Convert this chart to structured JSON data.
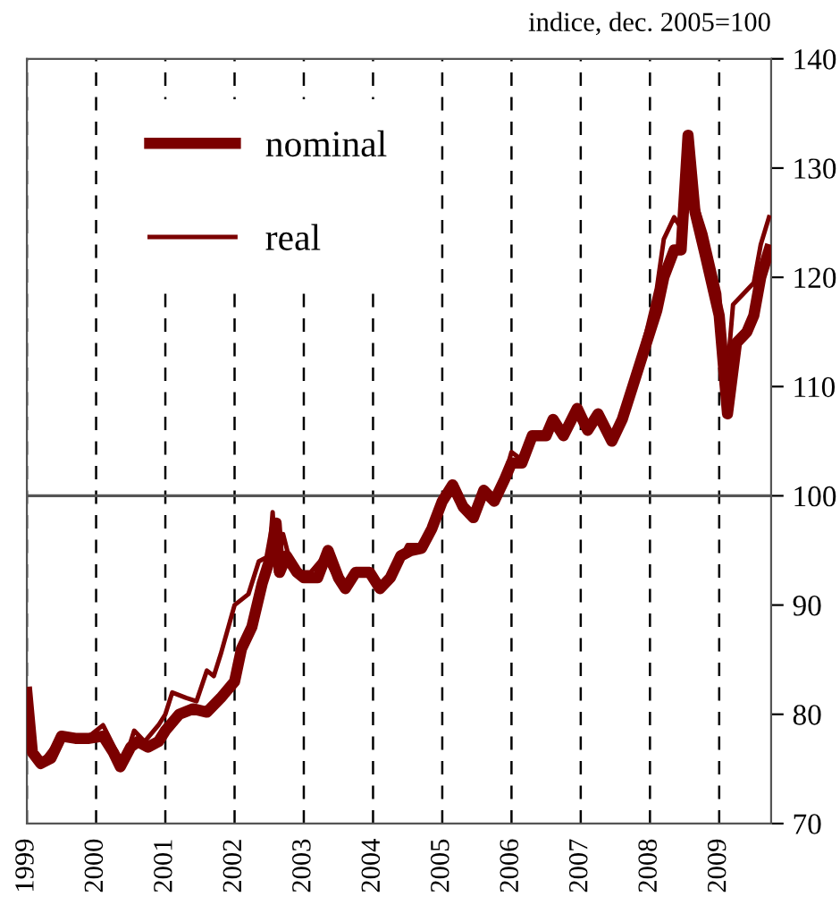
{
  "chart_data": {
    "type": "line",
    "ylabel": "indice, dec. 2005=100",
    "xlim": [
      1999,
      2009.75
    ],
    "xticks": [
      1999,
      2000,
      2001,
      2002,
      2003,
      2004,
      2005,
      2006,
      2007,
      2008,
      2009
    ],
    "ylim": [
      70,
      140
    ],
    "yticks": [
      70,
      80,
      90,
      100,
      110,
      120,
      130,
      140
    ],
    "grid": "x",
    "legend": "top left",
    "marker": "none",
    "line_style": "solid",
    "ref_lines": [
      {
        "axis": "y",
        "value": 100,
        "color": "#555555"
      }
    ],
    "series": [
      {
        "name": "nominal",
        "color": "#7b0000",
        "x": [
          1999.0,
          1999.08,
          1999.2,
          1999.35,
          1999.5,
          1999.7,
          1999.9,
          2000.1,
          2000.25,
          2000.35,
          2000.5,
          2000.6,
          2000.75,
          2000.9,
          2001.0,
          2001.2,
          2001.4,
          2001.6,
          2001.8,
          2002.0,
          2002.1,
          2002.25,
          2002.4,
          2002.5,
          2002.6,
          2002.65,
          2002.75,
          2002.9,
          2003.0,
          2003.2,
          2003.35,
          2003.5,
          2003.6,
          2003.75,
          2003.95,
          2004.1,
          2004.25,
          2004.4,
          2004.55,
          2004.7,
          2004.85,
          2005.0,
          2005.15,
          2005.3,
          2005.45,
          2005.6,
          2005.75,
          2005.9,
          2006.0,
          2006.15,
          2006.3,
          2006.5,
          2006.6,
          2006.75,
          2006.95,
          2007.1,
          2007.25,
          2007.45,
          2007.6,
          2007.75,
          2007.95,
          2008.1,
          2008.2,
          2008.35,
          2008.45,
          2008.55,
          2008.65,
          2008.8,
          2009.0,
          2009.12,
          2009.25,
          2009.4,
          2009.5,
          2009.6,
          2009.72
        ],
        "values": [
          82,
          76.5,
          75.5,
          76,
          78,
          77.8,
          77.8,
          78,
          76.5,
          75.2,
          77,
          77.5,
          77,
          77.5,
          78.5,
          80,
          80.5,
          80.2,
          81.5,
          83,
          86,
          88,
          92,
          94,
          97.5,
          93,
          94.5,
          93,
          92.5,
          92.5,
          95,
          92.5,
          91.5,
          93,
          93,
          91.5,
          92.5,
          94.5,
          95,
          95.2,
          97,
          99.5,
          101,
          99,
          98,
          100.5,
          99.5,
          101.5,
          103,
          103,
          105.5,
          105.5,
          107,
          105.5,
          108,
          106,
          107.5,
          105,
          107,
          110,
          114,
          117,
          120,
          122.5,
          122.5,
          133,
          126,
          122,
          116.5,
          107.5,
          114,
          115,
          116.5,
          120,
          122.5
        ]
      },
      {
        "name": "real",
        "color": "#7b0000",
        "x": [
          1999.0,
          1999.08,
          1999.2,
          1999.5,
          1999.9,
          2000.1,
          2000.3,
          2000.4,
          2000.55,
          2000.7,
          2000.9,
          2001.0,
          2001.1,
          2001.3,
          2001.45,
          2001.6,
          2001.7,
          2001.8,
          2002.0,
          2002.2,
          2002.35,
          2002.5,
          2002.55,
          2002.6,
          2002.7,
          2002.8,
          2002.95,
          2003.1,
          2003.3,
          2003.5,
          2003.65,
          2003.8,
          2004.0,
          2004.1,
          2004.3,
          2004.5,
          2004.7,
          2004.85,
          2005.0,
          2005.15,
          2005.3,
          2005.45,
          2005.6,
          2005.75,
          2005.9,
          2006.0,
          2006.15,
          2006.3,
          2006.5,
          2006.6,
          2006.75,
          2006.95,
          2007.1,
          2007.25,
          2007.45,
          2007.6,
          2007.75,
          2007.95,
          2008.1,
          2008.2,
          2008.35,
          2008.45,
          2008.5,
          2008.6,
          2008.8,
          2009.0,
          2009.1,
          2009.2,
          2009.35,
          2009.5,
          2009.6,
          2009.72
        ],
        "values": [
          82,
          77,
          75.5,
          78,
          78,
          79,
          76.5,
          75.5,
          78.5,
          77.5,
          79,
          80,
          82,
          81.5,
          81.2,
          84,
          83.5,
          85.5,
          90,
          91,
          94,
          94.5,
          98.5,
          93,
          96.5,
          94,
          93,
          93,
          94.5,
          92,
          91.8,
          93,
          92.5,
          91.5,
          93,
          95.5,
          95.5,
          97.5,
          99.8,
          101,
          99,
          98.3,
          100.8,
          99.7,
          101.8,
          104,
          103.3,
          105.5,
          105.8,
          107,
          105.5,
          108,
          106.3,
          107.5,
          105.2,
          107,
          110.5,
          115,
          119,
          123.5,
          125.5,
          124.5,
          129.5,
          128,
          124,
          118.5,
          110,
          117.5,
          118.5,
          119.5,
          123,
          125.5
        ]
      }
    ]
  }
}
